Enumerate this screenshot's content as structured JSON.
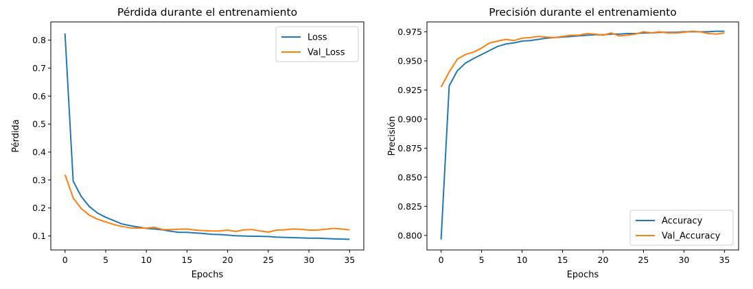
{
  "chart_data": [
    {
      "type": "line",
      "title": "Pérdida durante el entrenamiento",
      "xlabel": "Epochs",
      "ylabel": "Pérdida",
      "xlim": [
        -1.75,
        36.75
      ],
      "ylim": [
        0.05,
        0.865
      ],
      "xticks": [
        0,
        5,
        10,
        15,
        20,
        25,
        30,
        35
      ],
      "yticks": [
        0.1,
        0.2,
        0.3,
        0.4,
        0.5,
        0.6,
        0.7,
        0.8
      ],
      "ytick_format": 1,
      "grid": false,
      "legend_position": "upper right",
      "x": [
        0,
        1,
        2,
        3,
        4,
        5,
        6,
        7,
        8,
        9,
        10,
        11,
        12,
        13,
        14,
        15,
        16,
        17,
        18,
        19,
        20,
        21,
        22,
        23,
        24,
        25,
        26,
        27,
        28,
        29,
        30,
        31,
        32,
        33,
        34,
        35
      ],
      "series": [
        {
          "name": "Loss",
          "color": "#1f77b4",
          "values": [
            0.824,
            0.296,
            0.241,
            0.205,
            0.182,
            0.167,
            0.155,
            0.143,
            0.137,
            0.132,
            0.127,
            0.125,
            0.122,
            0.117,
            0.113,
            0.113,
            0.111,
            0.109,
            0.106,
            0.105,
            0.103,
            0.101,
            0.1,
            0.099,
            0.099,
            0.098,
            0.096,
            0.095,
            0.094,
            0.093,
            0.092,
            0.092,
            0.091,
            0.09,
            0.089,
            0.088
          ]
        },
        {
          "name": "Val_Loss",
          "color": "#ff7f0e",
          "values": [
            0.319,
            0.236,
            0.198,
            0.174,
            0.16,
            0.15,
            0.141,
            0.134,
            0.129,
            0.128,
            0.128,
            0.131,
            0.123,
            0.123,
            0.124,
            0.125,
            0.121,
            0.119,
            0.118,
            0.118,
            0.121,
            0.116,
            0.122,
            0.123,
            0.118,
            0.114,
            0.121,
            0.122,
            0.125,
            0.124,
            0.121,
            0.121,
            0.124,
            0.127,
            0.125,
            0.122
          ]
        }
      ]
    },
    {
      "type": "line",
      "title": "Precisión durante el entrenamiento",
      "xlabel": "Epochs",
      "ylabel": "Precisión",
      "xlim": [
        -1.75,
        36.75
      ],
      "ylim": [
        0.7875,
        0.9835
      ],
      "xticks": [
        0,
        5,
        10,
        15,
        20,
        25,
        30,
        35
      ],
      "yticks": [
        0.8,
        0.825,
        0.85,
        0.875,
        0.9,
        0.925,
        0.95,
        0.975
      ],
      "ytick_format": 3,
      "grid": false,
      "legend_position": "lower right",
      "x": [
        0,
        1,
        2,
        3,
        4,
        5,
        6,
        7,
        8,
        9,
        10,
        11,
        12,
        13,
        14,
        15,
        16,
        17,
        18,
        19,
        20,
        21,
        22,
        23,
        24,
        25,
        26,
        27,
        28,
        29,
        30,
        31,
        32,
        33,
        34,
        35
      ],
      "series": [
        {
          "name": "Accuracy",
          "color": "#1f77b4",
          "values": [
            0.7965,
            0.9285,
            0.9415,
            0.948,
            0.952,
            0.9555,
            0.959,
            0.9625,
            0.9645,
            0.9655,
            0.967,
            0.9675,
            0.9685,
            0.9695,
            0.97,
            0.9705,
            0.971,
            0.9715,
            0.972,
            0.9725,
            0.9725,
            0.973,
            0.973,
            0.9735,
            0.9735,
            0.974,
            0.974,
            0.9745,
            0.9745,
            0.9745,
            0.975,
            0.975,
            0.975,
            0.975,
            0.9755,
            0.9755
          ]
        },
        {
          "name": "Val_Accuracy",
          "color": "#ff7f0e",
          "values": [
            0.9275,
            0.9405,
            0.9515,
            0.9555,
            0.9575,
            0.961,
            0.9655,
            0.967,
            0.9685,
            0.9675,
            0.9695,
            0.97,
            0.971,
            0.9705,
            0.97,
            0.971,
            0.972,
            0.972,
            0.9735,
            0.973,
            0.972,
            0.974,
            0.9715,
            0.972,
            0.973,
            0.975,
            0.974,
            0.975,
            0.974,
            0.974,
            0.9745,
            0.9755,
            0.975,
            0.9735,
            0.973,
            0.974
          ]
        }
      ]
    }
  ]
}
